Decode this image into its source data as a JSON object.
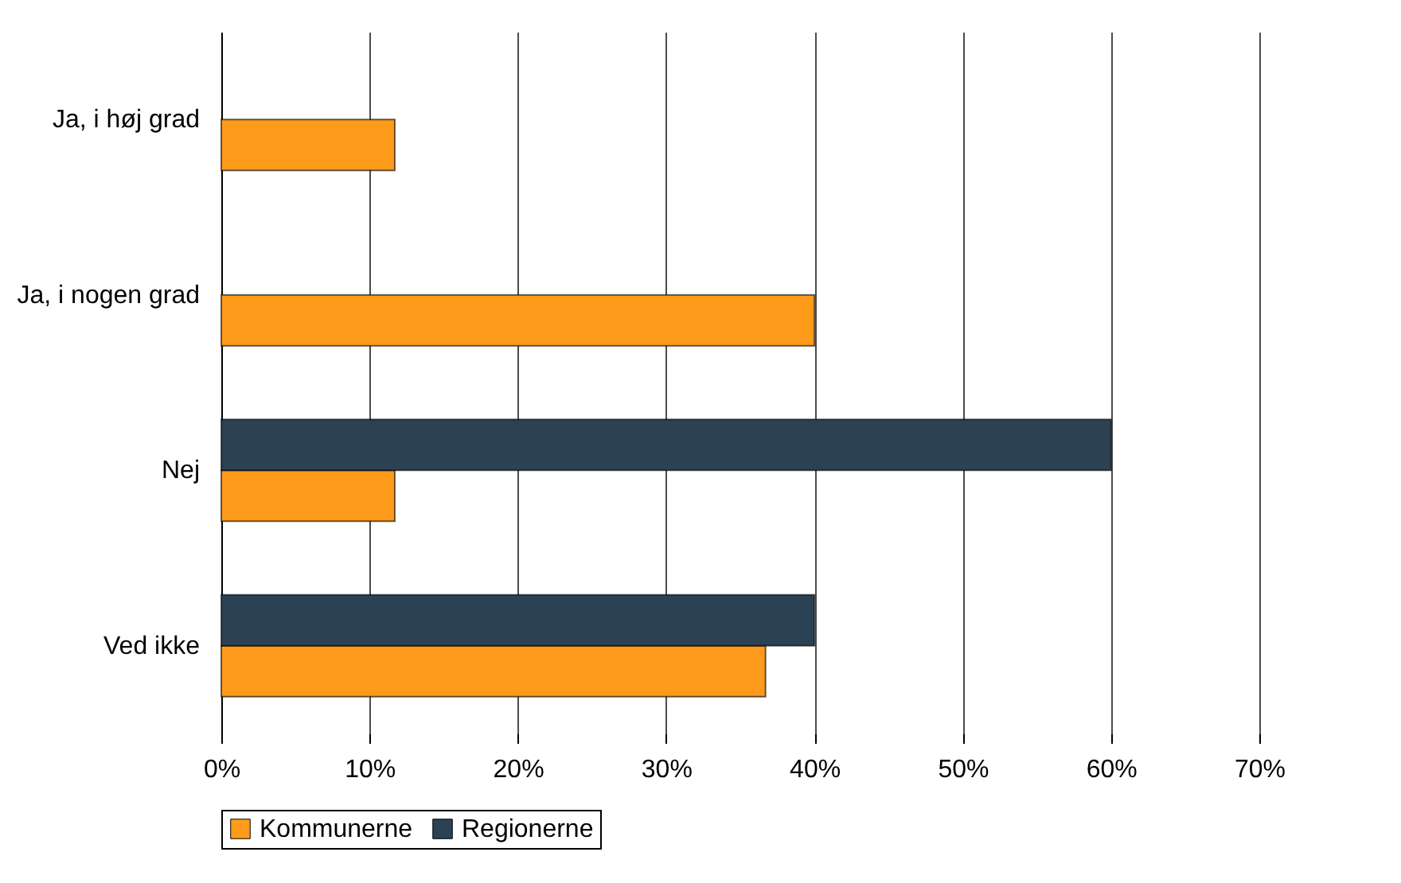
{
  "chart_data": {
    "type": "bar",
    "orientation": "horizontal",
    "categories": [
      "Ja, i høj grad",
      "Ja, i nogen grad",
      "Nej",
      "Ved ikke"
    ],
    "series": [
      {
        "name": "Kommunerne",
        "color": "#ff9b1a",
        "values": [
          11.7,
          40,
          11.7,
          36.7
        ]
      },
      {
        "name": "Regionerne",
        "color": "#2b4254",
        "values": [
          null,
          null,
          60,
          40
        ]
      }
    ],
    "xlim": [
      0,
      70
    ],
    "xticks": [
      {
        "value": 0,
        "label": "0%"
      },
      {
        "value": 10,
        "label": "10%"
      },
      {
        "value": 20,
        "label": "20%"
      },
      {
        "value": 30,
        "label": "30%"
      },
      {
        "value": 40,
        "label": "40%"
      },
      {
        "value": 50,
        "label": "50%"
      },
      {
        "value": 60,
        "label": "60%"
      },
      {
        "value": 70,
        "label": "70%"
      }
    ],
    "grid": "x",
    "legend": "bottom"
  }
}
